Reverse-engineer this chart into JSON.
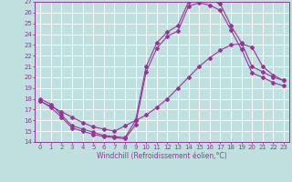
{
  "xlabel": "Windchill (Refroidissement éolien,°C)",
  "xlim": [
    -0.5,
    23.5
  ],
  "ylim": [
    14,
    27
  ],
  "xticks": [
    0,
    1,
    2,
    3,
    4,
    5,
    6,
    7,
    8,
    9,
    10,
    11,
    12,
    13,
    14,
    15,
    16,
    17,
    18,
    19,
    20,
    21,
    22,
    23
  ],
  "yticks": [
    14,
    15,
    16,
    17,
    18,
    19,
    20,
    21,
    22,
    23,
    24,
    25,
    26,
    27
  ],
  "bg_color": "#c0e0e0",
  "grid_color": "#ffffff",
  "line_color": "#993399",
  "curve1_x": [
    0,
    1,
    2,
    3,
    4,
    5,
    6,
    7,
    8,
    9,
    10,
    11,
    12,
    13,
    14,
    15,
    16,
    17,
    18,
    19,
    20,
    21,
    22,
    23
  ],
  "curve1_y": [
    18.0,
    17.5,
    16.5,
    15.5,
    15.2,
    14.9,
    14.6,
    14.5,
    14.4,
    16.0,
    21.0,
    23.2,
    24.2,
    24.8,
    27.0,
    27.3,
    27.2,
    26.8,
    24.8,
    23.2,
    21.0,
    20.5,
    20.0,
    19.7
  ],
  "curve2_x": [
    0,
    1,
    2,
    3,
    4,
    5,
    6,
    7,
    8,
    9,
    10,
    11,
    12,
    13,
    14,
    15,
    16,
    17,
    18,
    19,
    20,
    21,
    22,
    23
  ],
  "curve2_y": [
    17.8,
    17.2,
    16.3,
    15.3,
    15.0,
    14.7,
    14.5,
    14.4,
    14.3,
    15.6,
    20.5,
    22.7,
    23.8,
    24.3,
    26.6,
    26.9,
    26.7,
    26.2,
    24.4,
    22.6,
    20.4,
    20.0,
    19.5,
    19.2
  ],
  "curve3_x": [
    0,
    1,
    2,
    3,
    4,
    5,
    6,
    7,
    8,
    9,
    10,
    11,
    12,
    13,
    14,
    15,
    16,
    17,
    18,
    19,
    20,
    21,
    22,
    23
  ],
  "curve3_y": [
    17.8,
    17.3,
    16.8,
    16.3,
    15.8,
    15.4,
    15.2,
    15.0,
    15.5,
    16.0,
    16.5,
    17.2,
    18.0,
    19.0,
    20.0,
    21.0,
    21.8,
    22.5,
    23.0,
    23.1,
    22.8,
    21.0,
    20.2,
    19.7
  ],
  "marker": "D",
  "markersize": 2,
  "linewidth": 0.8,
  "tick_fontsize": 5,
  "xlabel_fontsize": 5.5
}
